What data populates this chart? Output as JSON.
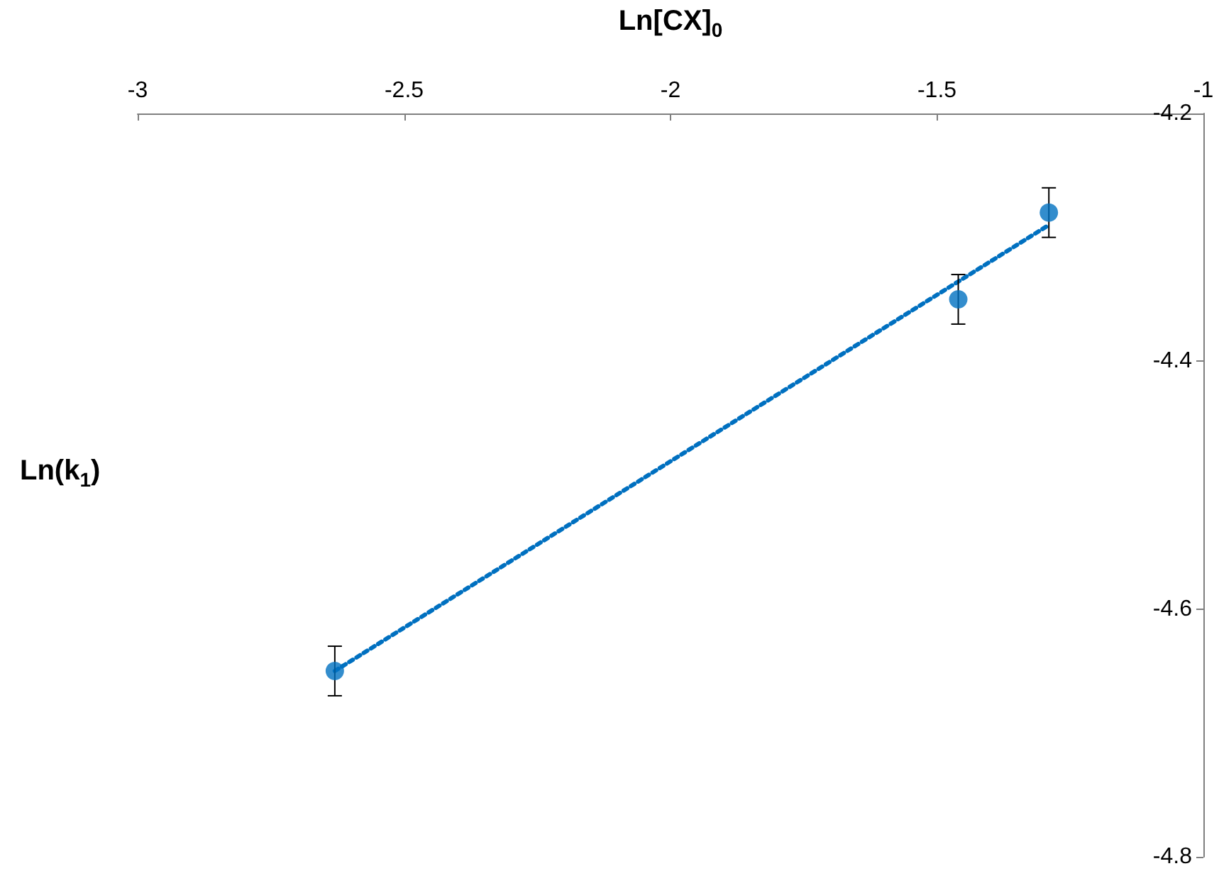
{
  "chart_data": {
    "type": "scatter",
    "xlabel": "Ln[CX]$_{0}$",
    "ylabel": "Ln(k$_{1}$)",
    "series": [
      {
        "color": "#0070c0",
        "x": [
          -2.63,
          -1.46,
          -1.29
        ],
        "values": [
          -4.65,
          -4.35,
          -4.28
        ],
        "errors": [
          0.02,
          0.02,
          0.02
        ],
        "marker": "circle"
      },
      {
        "type": "line",
        "color": "#0070c0",
        "x": [
          -2.63,
          -1.29
        ],
        "values": [
          -4.65,
          -4.29
        ],
        "line_style": "dotted",
        "marker": "none"
      }
    ],
    "xlim": [
      -3,
      -1
    ],
    "xticks": [
      -3,
      -2.5,
      -2,
      -1.5,
      -1
    ],
    "ylim": [
      -4.8,
      -4.2
    ],
    "yticks": [
      -4.8,
      -4.6,
      -4.4,
      -4.2
    ],
    "grid": false
  }
}
